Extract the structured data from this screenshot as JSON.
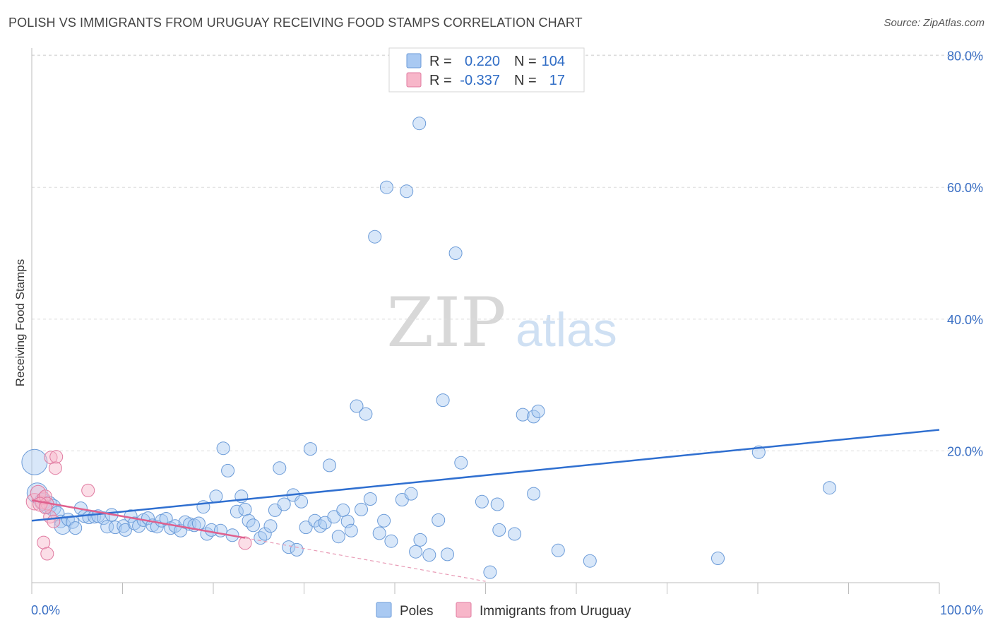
{
  "title": "POLISH VS IMMIGRANTS FROM URUGUAY RECEIVING FOOD STAMPS CORRELATION CHART",
  "source": "Source: ZipAtlas.com",
  "watermark": {
    "zip": "ZIP",
    "atlas": "atlas"
  },
  "legend": [
    {
      "r_label": "R =",
      "r_value": "0.220",
      "n_label": "N =",
      "n_value": "104",
      "color": "#a9c9f2",
      "stroke": "#6b9bd8"
    },
    {
      "r_label": "R =",
      "r_value": "-0.337",
      "n_label": "N =",
      "n_value": "17",
      "color": "#f7b6c9",
      "stroke": "#e07aa0"
    }
  ],
  "bottom_legend": [
    {
      "label": "Poles",
      "color": "#a9c9f2",
      "stroke": "#6b9bd8"
    },
    {
      "label": "Immigrants from Uruguay",
      "color": "#f7b6c9",
      "stroke": "#e07aa0"
    }
  ],
  "chart_data": {
    "type": "scatter",
    "title": "POLISH VS IMMIGRANTS FROM URUGUAY RECEIVING FOOD STAMPS CORRELATION CHART",
    "xlabel": "",
    "ylabel": "Receiving Food Stamps",
    "xlim": [
      0,
      100
    ],
    "ylim": [
      0,
      82
    ],
    "x_tick_labels": [
      "0.0%",
      "100.0%"
    ],
    "y_tick_labels": [
      "20.0%",
      "40.0%",
      "60.0%",
      "80.0%"
    ],
    "y_ticks": [
      20,
      40,
      60,
      80
    ],
    "grid": "horizontal dashed",
    "series": [
      {
        "name": "Poles",
        "color": "#6b9bd8",
        "trend": {
          "x": [
            0,
            100
          ],
          "y": [
            9.4,
            23.2
          ]
        },
        "points": [
          [
            0.3,
            18.3,
            2.0
          ],
          [
            0.6,
            13.6,
            1.6
          ],
          [
            1.2,
            12.3,
            1.3
          ],
          [
            1.8,
            11.8,
            1.4
          ],
          [
            2.3,
            11.4,
            1.3
          ],
          [
            2.8,
            10.5,
            1.1
          ],
          [
            3.2,
            9.3,
            1.0
          ],
          [
            3.4,
            8.6,
            1.3
          ],
          [
            4.0,
            9.6,
            1.0
          ],
          [
            4.5,
            9.2,
            1.0
          ],
          [
            4.8,
            8.3,
            1.0
          ],
          [
            5.4,
            11.3,
            1.0
          ],
          [
            5.8,
            10.1,
            1.0
          ],
          [
            6.3,
            9.9,
            1.0
          ],
          [
            6.9,
            10.0,
            1.0
          ],
          [
            7.3,
            10.1,
            1.0
          ],
          [
            7.9,
            9.8,
            1.0
          ],
          [
            8.3,
            8.5,
            1.0
          ],
          [
            8.8,
            10.3,
            1.0
          ],
          [
            9.2,
            8.4,
            1.0
          ],
          [
            10.1,
            8.6,
            1.0
          ],
          [
            10.3,
            8.0,
            1.0
          ],
          [
            10.9,
            10.1,
            1.0
          ],
          [
            11.3,
            9.0,
            1.0
          ],
          [
            11.8,
            8.6,
            1.0
          ],
          [
            12.3,
            9.5,
            1.0
          ],
          [
            12.8,
            9.8,
            1.0
          ],
          [
            13.3,
            8.7,
            1.0
          ],
          [
            13.8,
            8.5,
            1.0
          ],
          [
            14.3,
            9.4,
            1.0
          ],
          [
            14.8,
            9.7,
            1.0
          ],
          [
            15.3,
            8.3,
            1.0
          ],
          [
            15.8,
            8.6,
            1.0
          ],
          [
            16.4,
            7.9,
            1.0
          ],
          [
            16.9,
            9.2,
            1.0
          ],
          [
            17.4,
            8.9,
            1.0
          ],
          [
            17.9,
            8.7,
            1.0
          ],
          [
            18.4,
            9.0,
            1.0
          ],
          [
            18.9,
            11.5,
            1.0
          ],
          [
            19.3,
            7.4,
            1.0
          ],
          [
            19.8,
            8.0,
            1.0
          ],
          [
            20.3,
            13.1,
            1.0
          ],
          [
            20.8,
            7.9,
            1.0
          ],
          [
            21.1,
            20.4,
            1.0
          ],
          [
            21.6,
            17.0,
            1.0
          ],
          [
            22.1,
            7.2,
            1.0
          ],
          [
            22.6,
            10.8,
            1.0
          ],
          [
            23.1,
            13.1,
            1.0
          ],
          [
            23.5,
            11.1,
            1.0
          ],
          [
            23.9,
            9.4,
            1.0
          ],
          [
            24.4,
            8.7,
            1.0
          ],
          [
            25.2,
            6.8,
            1.0
          ],
          [
            25.7,
            7.4,
            1.0
          ],
          [
            26.3,
            8.6,
            1.0
          ],
          [
            26.8,
            11.0,
            1.0
          ],
          [
            27.3,
            17.4,
            1.0
          ],
          [
            27.8,
            11.9,
            1.0
          ],
          [
            28.3,
            5.4,
            1.0
          ],
          [
            28.8,
            13.3,
            1.0
          ],
          [
            29.2,
            5.0,
            1.0
          ],
          [
            29.7,
            12.3,
            1.0
          ],
          [
            30.2,
            8.4,
            1.0
          ],
          [
            30.7,
            20.3,
            1.0
          ],
          [
            31.2,
            9.4,
            1.0
          ],
          [
            31.8,
            8.6,
            1.0
          ],
          [
            32.3,
            9.1,
            1.0
          ],
          [
            32.8,
            17.8,
            1.0
          ],
          [
            33.3,
            10.0,
            1.0
          ],
          [
            33.8,
            7.0,
            1.0
          ],
          [
            34.3,
            11.0,
            1.0
          ],
          [
            34.8,
            9.3,
            1.0
          ],
          [
            35.2,
            7.9,
            1.0
          ],
          [
            35.8,
            26.8,
            1.0
          ],
          [
            36.3,
            11.1,
            1.0
          ],
          [
            36.8,
            25.6,
            1.0
          ],
          [
            37.3,
            12.7,
            1.0
          ],
          [
            37.8,
            52.5,
            1.0
          ],
          [
            38.3,
            7.5,
            1.0
          ],
          [
            38.8,
            9.4,
            1.0
          ],
          [
            39.1,
            60.0,
            1.0
          ],
          [
            39.6,
            6.3,
            1.0
          ],
          [
            40.8,
            12.6,
            1.0
          ],
          [
            41.3,
            59.4,
            1.0
          ],
          [
            41.8,
            13.5,
            1.0
          ],
          [
            42.3,
            4.7,
            1.0
          ],
          [
            42.8,
            6.5,
            1.0
          ],
          [
            42.7,
            69.7,
            1.0
          ],
          [
            43.8,
            4.2,
            1.0
          ],
          [
            44.8,
            9.5,
            1.0
          ],
          [
            45.3,
            27.7,
            1.0
          ],
          [
            45.8,
            4.3,
            1.0
          ],
          [
            46.7,
            50.0,
            1.0
          ],
          [
            47.3,
            18.2,
            1.0
          ],
          [
            49.6,
            12.3,
            1.0
          ],
          [
            51.3,
            11.9,
            1.0
          ],
          [
            51.5,
            8.0,
            1.0
          ],
          [
            53.2,
            7.4,
            1.0
          ],
          [
            54.1,
            25.5,
            1.0
          ],
          [
            55.3,
            13.5,
            1.0
          ],
          [
            55.3,
            25.2,
            1.0
          ],
          [
            55.8,
            26.0,
            1.0
          ],
          [
            58.0,
            4.9,
            1.0
          ],
          [
            61.5,
            3.3,
            1.0
          ],
          [
            75.6,
            3.7,
            1.0
          ],
          [
            80.1,
            19.8,
            1.0
          ],
          [
            87.9,
            14.4,
            1.0
          ],
          [
            50.5,
            1.6,
            1.0
          ]
        ]
      },
      {
        "name": "Immigrants from Uruguay",
        "color": "#e07aa0",
        "trend": {
          "x": [
            0,
            23.5
          ],
          "y": [
            12.5,
            6.8
          ]
        },
        "trend_extension": {
          "x": [
            23.5,
            50.0
          ],
          "y": [
            6.8,
            0.2
          ]
        },
        "points": [
          [
            0.3,
            12.3,
            1.3
          ],
          [
            0.7,
            13.6,
            1.2
          ],
          [
            1.1,
            12.2,
            1.0
          ],
          [
            1.3,
            12.8,
            1.0
          ],
          [
            1.5,
            13.1,
            1.0
          ],
          [
            1.7,
            12.0,
            1.0
          ],
          [
            1.3,
            6.1,
            1.0
          ],
          [
            1.7,
            4.4,
            1.0
          ],
          [
            2.1,
            19.0,
            1.0
          ],
          [
            2.6,
            17.4,
            1.0
          ],
          [
            2.7,
            19.1,
            1.0
          ],
          [
            2.0,
            10.0,
            1.0
          ],
          [
            2.4,
            9.3,
            1.0
          ],
          [
            6.2,
            14.0,
            1.0
          ],
          [
            23.5,
            6.0,
            1.0
          ],
          [
            0.9,
            11.9,
            1.1
          ],
          [
            1.5,
            11.4,
            1.0
          ]
        ]
      }
    ]
  }
}
